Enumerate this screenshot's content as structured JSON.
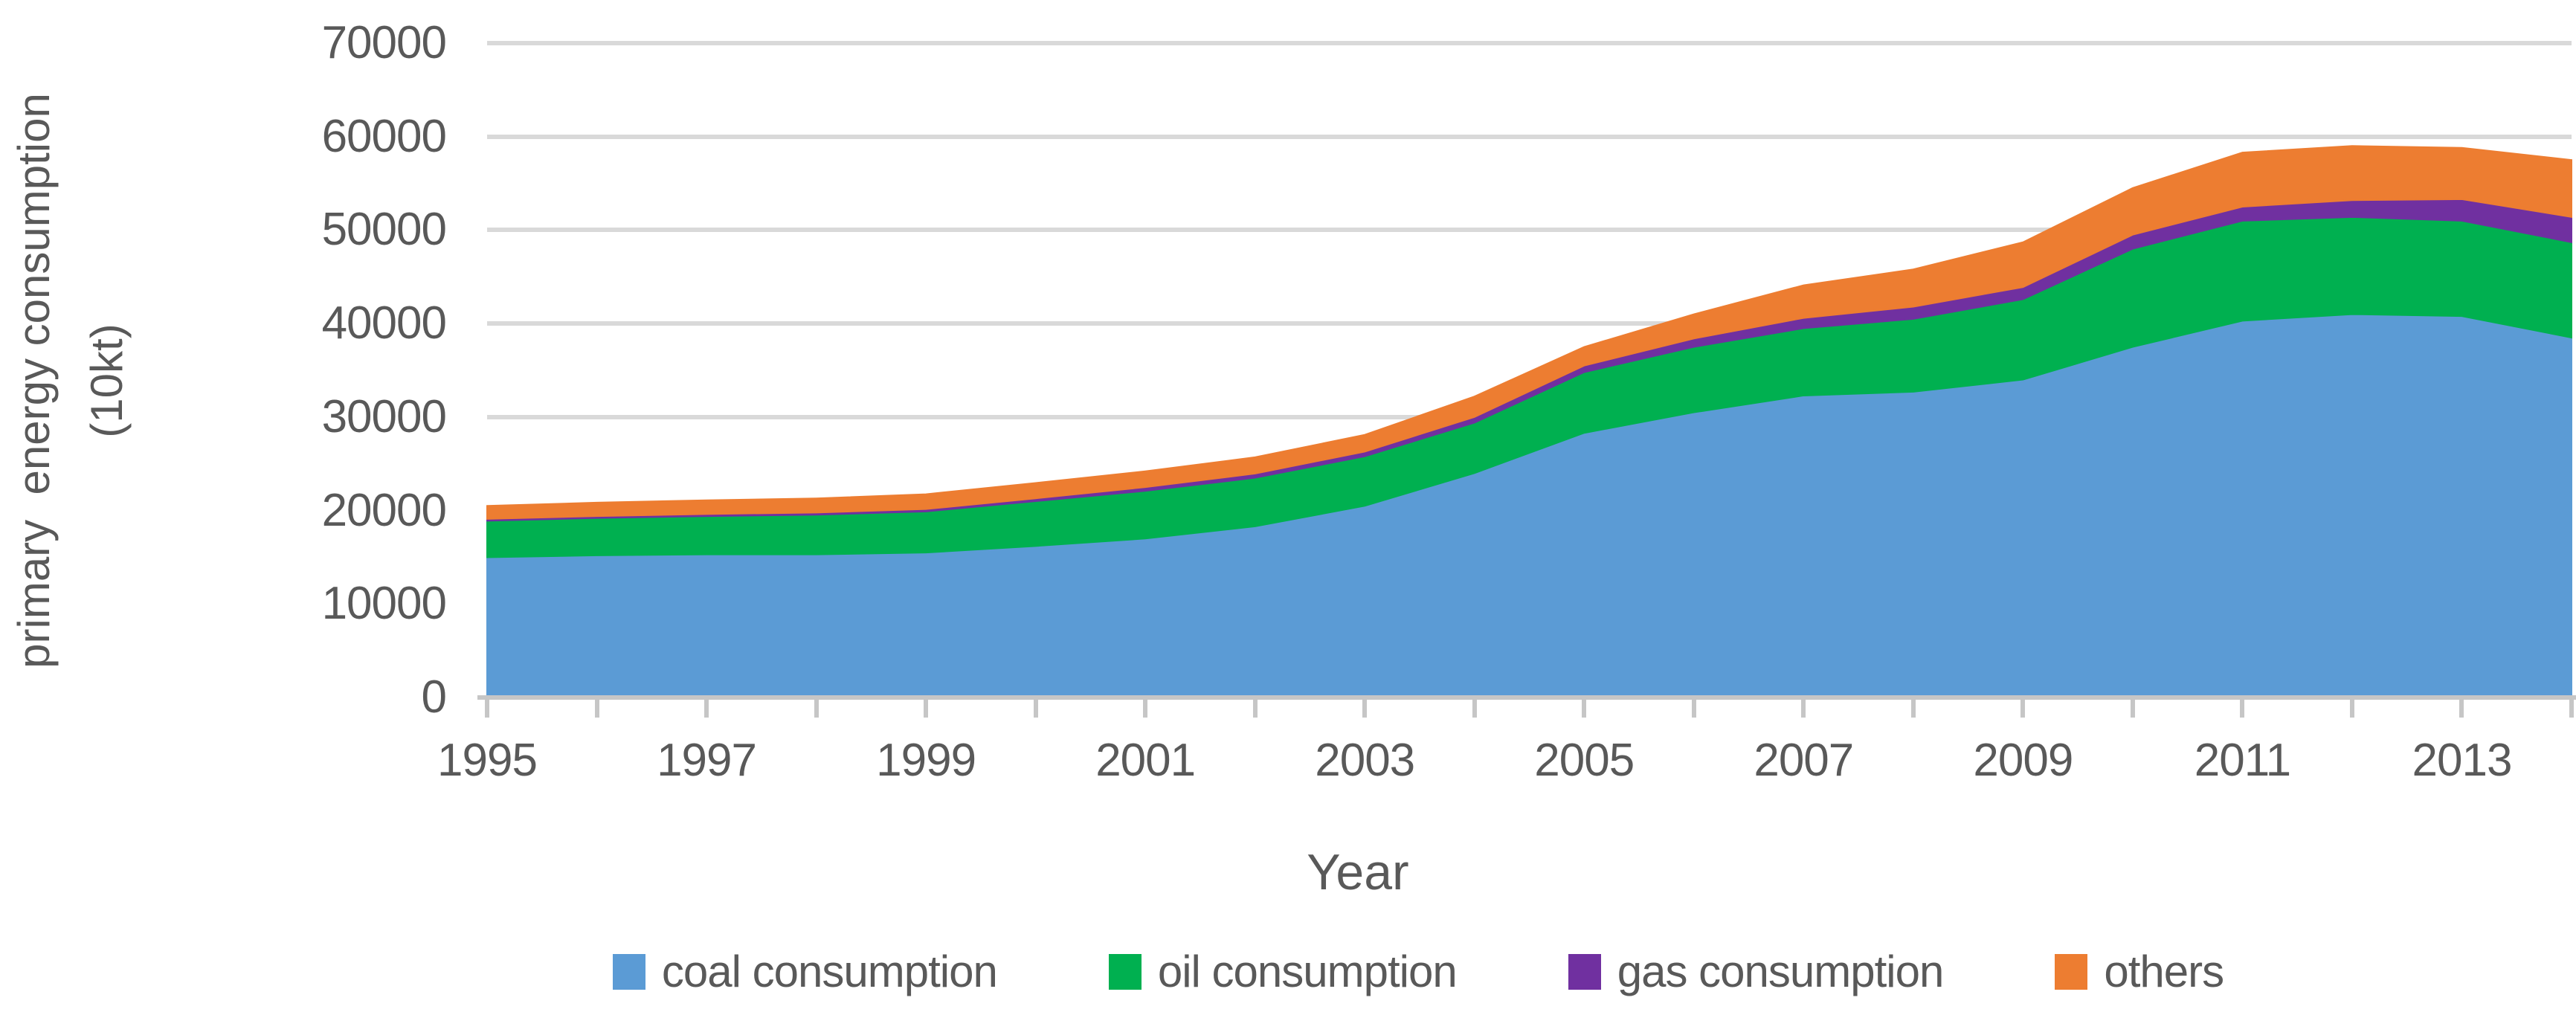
{
  "chart_data": {
    "type": "area",
    "stacked": true,
    "title": "",
    "x": [
      1995,
      1996,
      1997,
      1998,
      1999,
      2000,
      2001,
      2002,
      2003,
      2004,
      2005,
      2006,
      2007,
      2008,
      2009,
      2010,
      2011,
      2012,
      2013,
      2014
    ],
    "series": [
      {
        "name": "coal consumption",
        "color": "#5b9bd5",
        "values": [
          15000,
          15200,
          15300,
          15300,
          15500,
          16200,
          17000,
          18300,
          20500,
          24000,
          28300,
          30500,
          32300,
          32700,
          34000,
          37500,
          40300,
          41000,
          40800,
          38500
        ]
      },
      {
        "name": "oil consumption",
        "color": "#00b050",
        "values": [
          3900,
          4000,
          4100,
          4250,
          4400,
          4800,
          5100,
          5200,
          5300,
          5400,
          6500,
          7000,
          7200,
          7800,
          8600,
          10500,
          10700,
          10400,
          10200,
          10200
        ]
      },
      {
        "name": "gas consumption",
        "color": "#7030a0",
        "values": [
          200,
          200,
          220,
          230,
          250,
          300,
          400,
          450,
          500,
          600,
          700,
          900,
          1100,
          1300,
          1300,
          1500,
          1500,
          1800,
          2300,
          2700
        ]
      },
      {
        "name": "others",
        "color": "#ed7d31",
        "values": [
          1400,
          1450,
          1480,
          1520,
          1600,
          1650,
          1700,
          1750,
          1800,
          2200,
          2000,
          2600,
          3500,
          4000,
          4800,
          5000,
          5800,
          5800,
          5500,
          6100
        ]
      }
    ],
    "xlabel": "Year",
    "ylabel_line1": "primary  energy consumption",
    "ylabel_line2": "(10kt)",
    "ylim": [
      0,
      70000
    ],
    "ytick_labels": [
      "0",
      "10000",
      "20000",
      "30000",
      "40000",
      "50000",
      "60000",
      "70000"
    ],
    "xtick_labels": [
      "1995",
      "1997",
      "1999",
      "2001",
      "2003",
      "2005",
      "2007",
      "2009",
      "2011",
      "2013"
    ],
    "x_minor_tick_every_year": true,
    "grid": "horizontal",
    "legend_position": "bottom"
  },
  "palette": {
    "gridline": "#d9d9d9",
    "axis": "#c6c6c6",
    "text": "#595959"
  }
}
